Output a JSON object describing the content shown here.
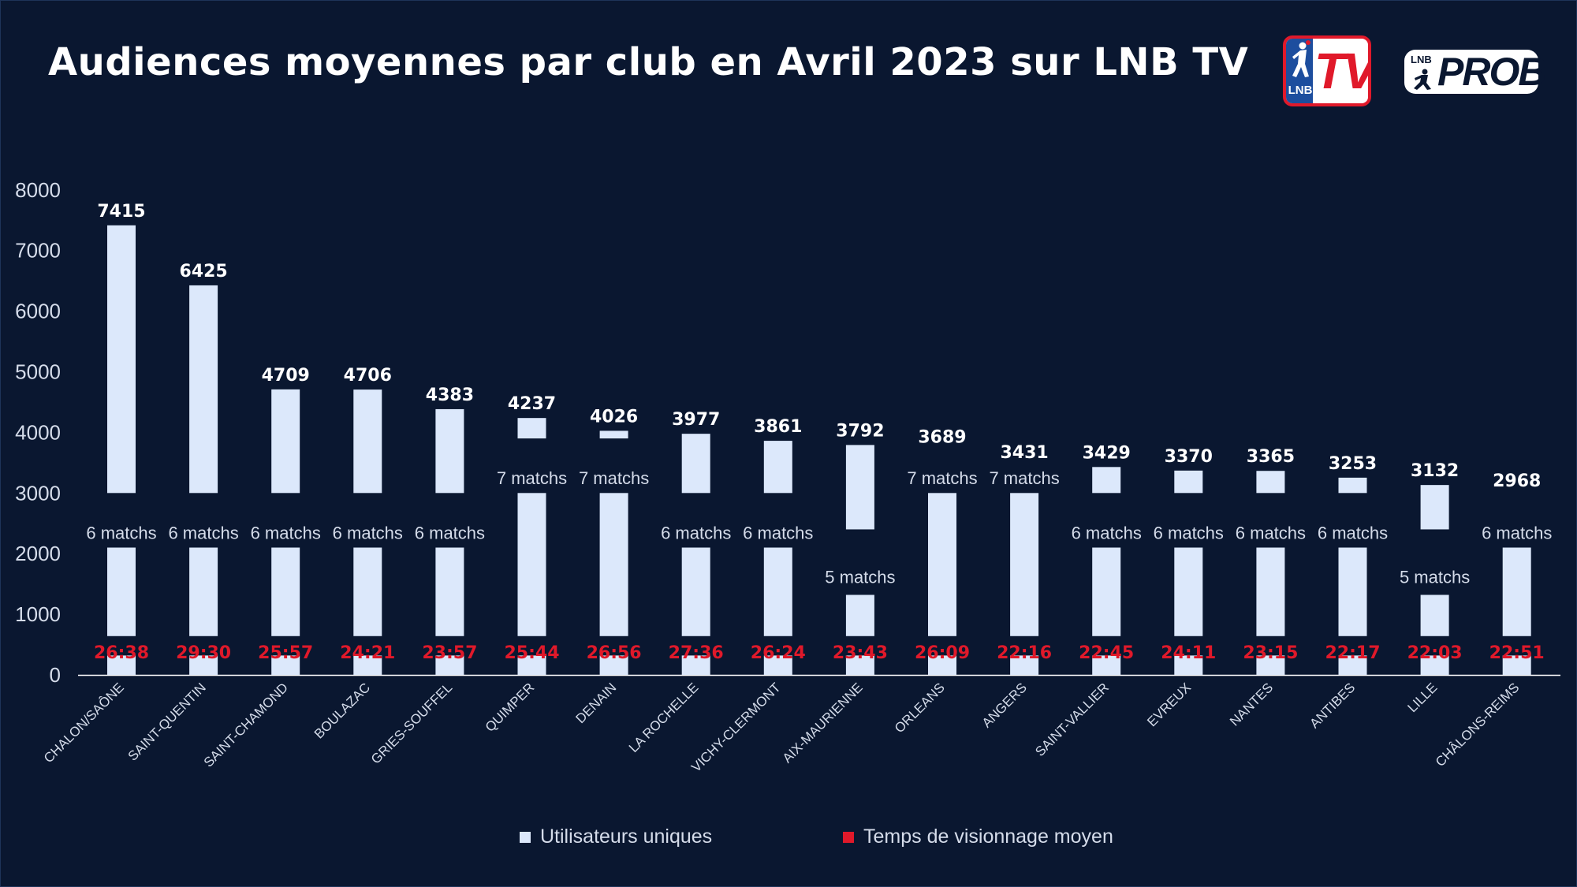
{
  "title": "Audiences moyennes par club en Avril 2023 sur LNB TV",
  "logos": {
    "tv_small": "LNB",
    "tv_big": "TV",
    "prob_small": "LNB",
    "prob_big": "PROB"
  },
  "legend": {
    "users": "Utilisateurs uniques",
    "time": "Temps de visionnage moyen"
  },
  "colors": {
    "background": "#0a1730",
    "bar": "#dce8fb",
    "time": "#e0192a",
    "text": "#ffffff",
    "tick": "#d5dcea"
  },
  "chart_data": {
    "type": "bar",
    "title": "Audiences moyennes par club en Avril 2023 sur LNB TV",
    "xlabel": "",
    "ylabel": "",
    "ylim": [
      0,
      8000
    ],
    "yticks": [
      0,
      1000,
      2000,
      3000,
      4000,
      5000,
      6000,
      7000,
      8000
    ],
    "categories": [
      "CHALON/SAÔNE",
      "SAINT-QUENTIN",
      "SAINT-CHAMOND",
      "BOULAZAC",
      "GRIES-SOUFFEL",
      "QUIMPER",
      "DENAIN",
      "LA ROCHELLE",
      "VICHY-CLERMONT",
      "AIX-MAURIENNE",
      "ORLEANS",
      "ANGERS",
      "SAINT-VALLIER",
      "EVREUX",
      "NANTES",
      "ANTIBES",
      "LILLE",
      "CHÂLONS-REIMS"
    ],
    "series": [
      {
        "name": "Utilisateurs uniques",
        "values": [
          7415,
          6425,
          4709,
          4706,
          4383,
          4237,
          4026,
          3977,
          3861,
          3792,
          3689,
          3431,
          3429,
          3370,
          3365,
          3253,
          3132,
          2968
        ]
      },
      {
        "name": "Temps de visionnage moyen",
        "values": [
          "26:38",
          "29:30",
          "25:57",
          "24:21",
          "23:57",
          "25:44",
          "26:56",
          "27:36",
          "26:24",
          "23:43",
          "26:09",
          "22:16",
          "22:45",
          "24:11",
          "23:15",
          "22:17",
          "22:03",
          "22:51"
        ]
      }
    ],
    "matches": [
      "6 matchs",
      "6 matchs",
      "6 matchs",
      "6 matchs",
      "6 matchs",
      "7 matchs",
      "7 matchs",
      "6 matchs",
      "6 matchs",
      "5 matchs",
      "7 matchs",
      "7 matchs",
      "6 matchs",
      "6 matchs",
      "6 matchs",
      "6 matchs",
      "5 matchs",
      "6 matchs"
    ],
    "legend_position": "bottom"
  }
}
